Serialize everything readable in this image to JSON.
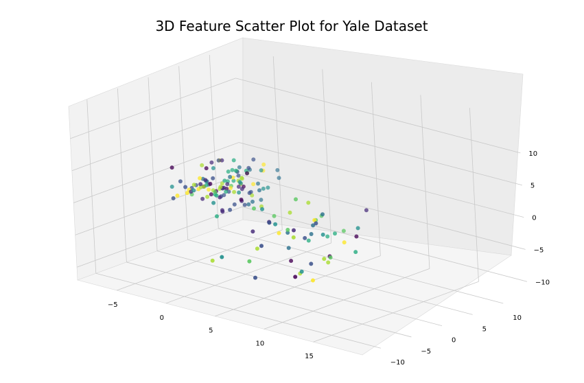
{
  "chart_data": {
    "type": "scatter",
    "title": "3D Feature Scatter Plot for Yale Dataset",
    "colormap": "viridis",
    "grid": true,
    "axes": {
      "x": {
        "ticks": [
          -5,
          0,
          5,
          10,
          15
        ],
        "range": [
          -9,
          20
        ]
      },
      "y": {
        "ticks": [
          -10,
          -5,
          0,
          5,
          10
        ],
        "range": [
          -13,
          14
        ]
      },
      "z": {
        "ticks": [
          -10,
          -5,
          0,
          5,
          10
        ],
        "range": [
          -12,
          15
        ]
      }
    },
    "pane_color": "#f2f2f2",
    "point_count": 165
  }
}
